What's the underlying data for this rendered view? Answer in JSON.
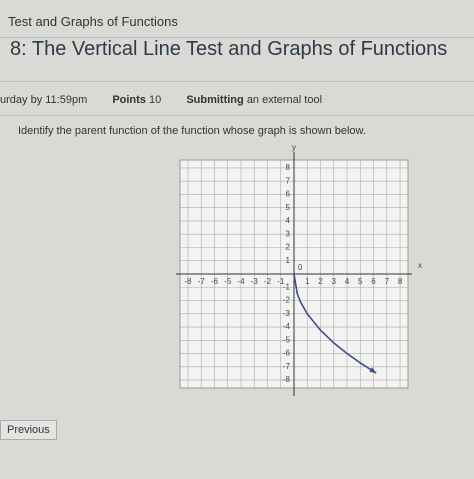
{
  "breadcrumb": "Test and Graphs of Functions",
  "title": "8: The Vertical Line Test and Graphs of Functions",
  "meta": {
    "due": "urday by 11:59pm",
    "points_label": "Points",
    "points": "10",
    "submitting_label": "Submitting",
    "submitting": "an external tool"
  },
  "question": "Identify the parent function of the function whose graph is shown below.",
  "graph": {
    "x_label": "x",
    "y_label": "y",
    "origin_label": "0",
    "xlim": [
      -8.6,
      8.6
    ],
    "ylim": [
      -8.6,
      8.6
    ],
    "xticks": [
      -8,
      -7,
      -6,
      -5,
      -4,
      -3,
      -2,
      -1,
      1,
      2,
      3,
      4,
      5,
      6,
      7,
      8
    ],
    "yticks": [
      -8,
      -7,
      -6,
      -5,
      -4,
      -3,
      -2,
      -1,
      1,
      2,
      3,
      4,
      5,
      6,
      7,
      8
    ],
    "curve": {
      "color": "#3d4f8c",
      "x": [
        0,
        0.25,
        0.5,
        1,
        2,
        3,
        4,
        5,
        6.2
      ],
      "y": [
        0,
        -1.5,
        -2.12,
        -3,
        -4.24,
        -5.2,
        -6,
        -6.71,
        -7.47
      ]
    }
  },
  "button": "Previous"
}
